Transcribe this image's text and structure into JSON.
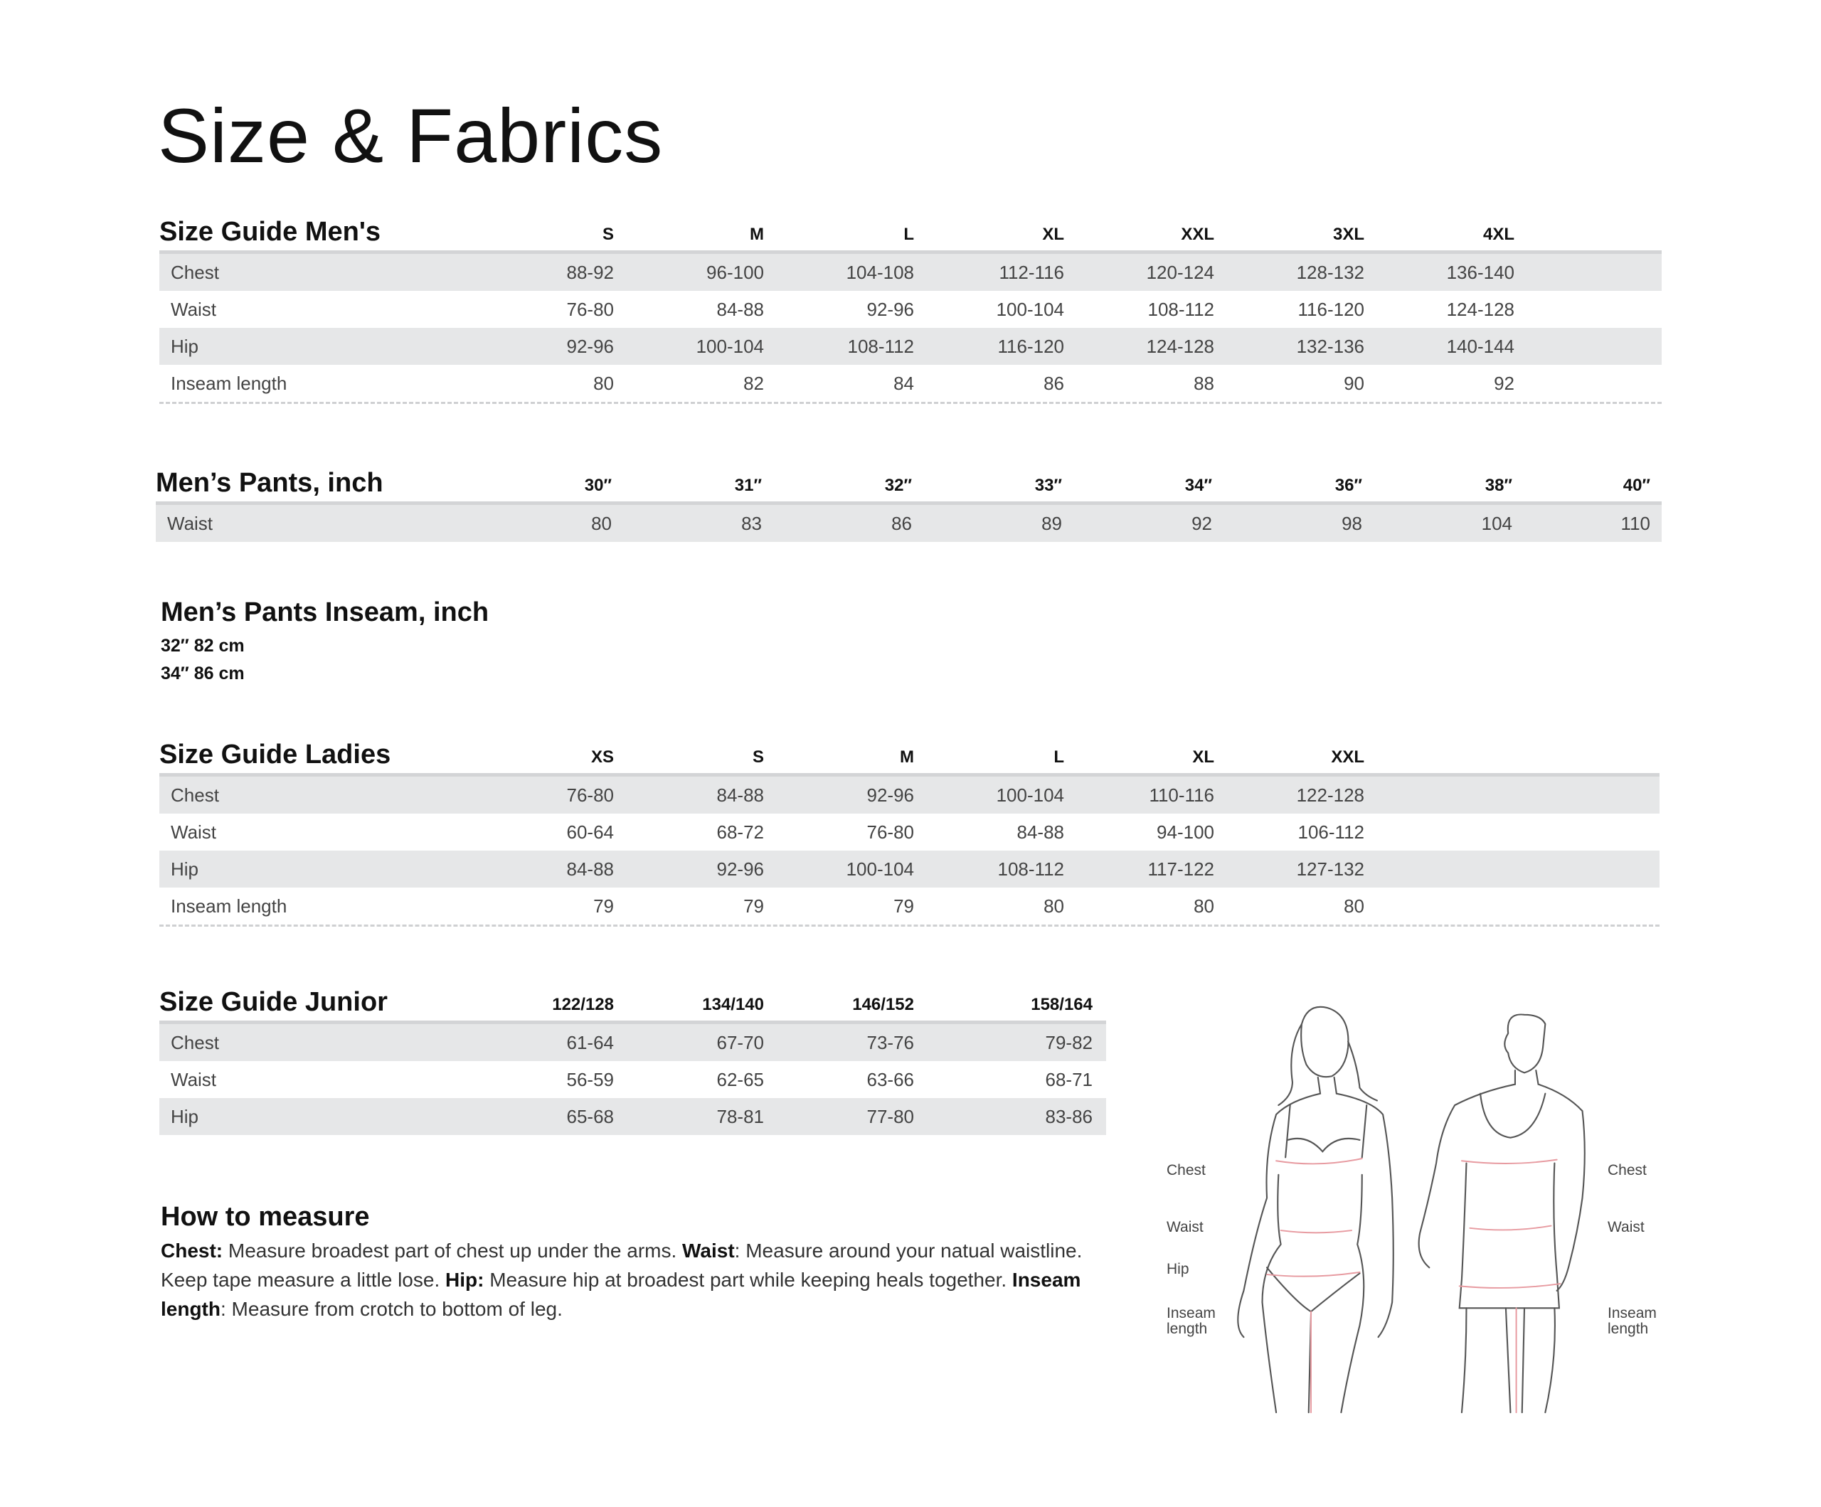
{
  "title": "Size & Fabrics",
  "mens": {
    "title": "Size Guide Men's",
    "columns": [
      "S",
      "M",
      "L",
      "XL",
      "XXL",
      "3XL",
      "4XL"
    ],
    "rows": [
      {
        "label": "Chest",
        "values": [
          "88-92",
          "96-100",
          "104-108",
          "112-116",
          "120-124",
          "128-132",
          "136-140"
        ]
      },
      {
        "label": "Waist",
        "values": [
          "76-80",
          "84-88",
          "92-96",
          "100-104",
          "108-112",
          "116-120",
          "124-128"
        ]
      },
      {
        "label": "Hip",
        "values": [
          "92-96",
          "100-104",
          "108-112",
          "116-120",
          "124-128",
          "132-136",
          "140-144"
        ]
      },
      {
        "label": "Inseam length",
        "values": [
          "80",
          "82",
          "84",
          "86",
          "88",
          "90",
          "92"
        ]
      }
    ]
  },
  "pants": {
    "title": "Men’s Pants, inch",
    "columns": [
      "30″",
      "31″",
      "32″",
      "33″",
      "34″",
      "36″",
      "38″",
      "40″"
    ],
    "rows": [
      {
        "label": "Waist",
        "values": [
          "80",
          "83",
          "86",
          "89",
          "92",
          "98",
          "104",
          "110"
        ]
      }
    ]
  },
  "pants_inseam": {
    "title": "Men’s Pants Inseam, inch",
    "lines": [
      "32″ 82 cm",
      "34″ 86 cm"
    ]
  },
  "ladies": {
    "title": "Size Guide Ladies",
    "columns": [
      "XS",
      "S",
      "M",
      "L",
      "XL",
      "XXL"
    ],
    "rows": [
      {
        "label": "Chest",
        "values": [
          "76-80",
          "84-88",
          "92-96",
          "100-104",
          "110-116",
          "122-128"
        ]
      },
      {
        "label": "Waist",
        "values": [
          "60-64",
          "68-72",
          "76-80",
          "84-88",
          "94-100",
          "106-112"
        ]
      },
      {
        "label": "Hip",
        "values": [
          "84-88",
          "92-96",
          "100-104",
          "108-112",
          "117-122",
          "127-132"
        ]
      },
      {
        "label": "Inseam length",
        "values": [
          "79",
          "79",
          "79",
          "80",
          "80",
          "80"
        ]
      }
    ]
  },
  "junior": {
    "title": "Size Guide Junior",
    "columns": [
      "122/128",
      "134/140",
      "146/152",
      "158/164"
    ],
    "rows": [
      {
        "label": "Chest",
        "values": [
          "61-64",
          "67-70",
          "73-76",
          "79-82"
        ]
      },
      {
        "label": "Waist",
        "values": [
          "56-59",
          "62-65",
          "63-66",
          "68-71"
        ]
      },
      {
        "label": "Hip",
        "values": [
          "65-68",
          "78-81",
          "77-80",
          "83-86"
        ]
      }
    ]
  },
  "how_to": {
    "title": "How to measure",
    "segments": [
      {
        "bold": true,
        "text": "Chest:"
      },
      {
        "bold": false,
        "text": " Measure broadest part of chest up under the arms. "
      },
      {
        "bold": true,
        "text": "Waist"
      },
      {
        "bold": false,
        "text": ": Measure around your natual waistline. Keep tape measure a little lose. "
      },
      {
        "bold": true,
        "text": "Hip:"
      },
      {
        "bold": false,
        "text": " Measure hip at broadest part while keeping heals together. "
      },
      {
        "bold": true,
        "text": "Inseam length"
      },
      {
        "bold": false,
        "text": ": Measure from crotch to bottom of leg."
      }
    ]
  },
  "figure_labels": {
    "left": [
      "Chest",
      "Waist",
      "Hip",
      "Inseam\nlength"
    ],
    "right": [
      "Chest",
      "Waist",
      "Inseam\nlength"
    ]
  },
  "colors": {
    "row_shade": "#e6e7e8",
    "measure_line": "#e79aa0",
    "sketch": "#555555"
  }
}
